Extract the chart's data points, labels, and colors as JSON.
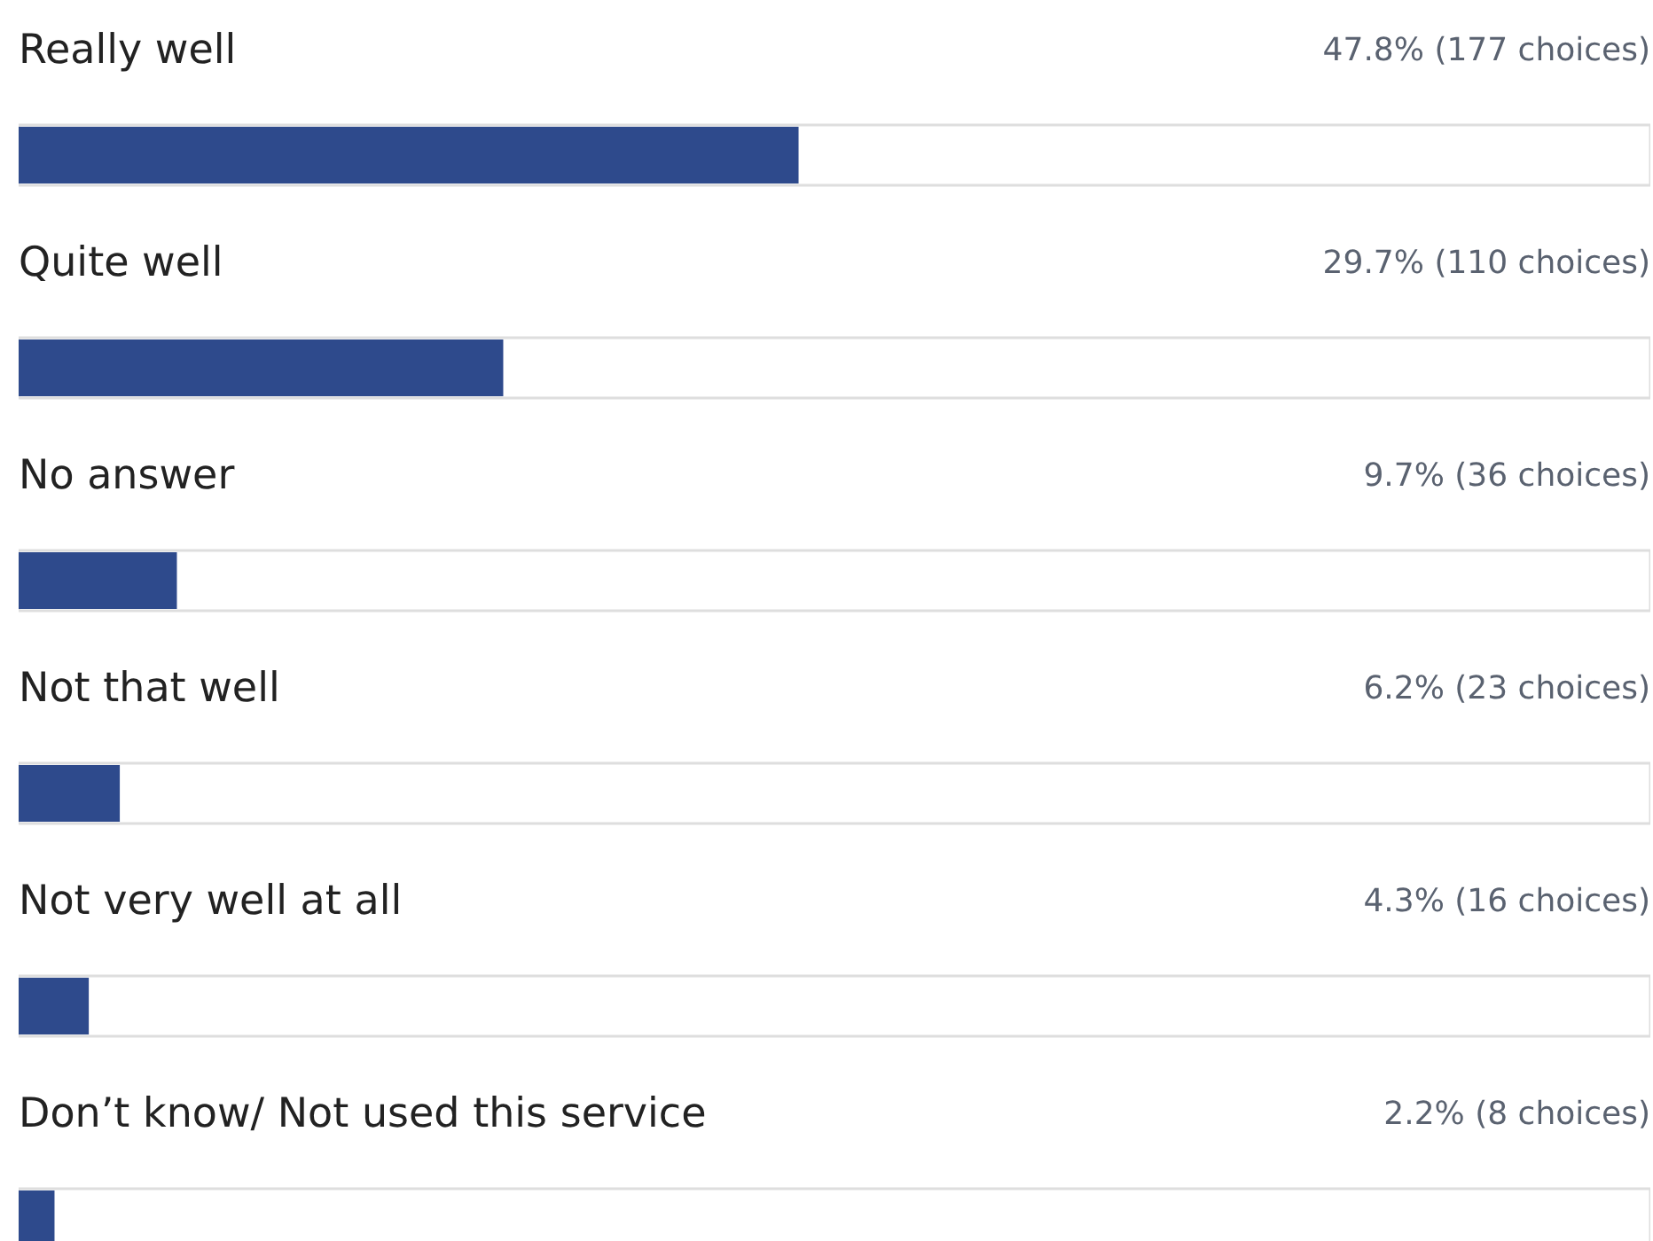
{
  "chart_data": {
    "type": "bar",
    "orientation": "horizontal",
    "categories": [
      "Really well",
      "Quite well",
      "No answer",
      "Not that well",
      "Not very well at all",
      "Don’t know/ Not used this service"
    ],
    "values": [
      47.8,
      29.7,
      9.7,
      6.2,
      4.3,
      2.2
    ],
    "value_labels": [
      "47.8% (177 choices)",
      "29.7% (110 choices)",
      "9.7% (36 choices)",
      "6.2% (23 choices)",
      "4.3% (16 choices)",
      "2.2% (8 choices)"
    ],
    "color": "#2e4a8c",
    "xlim": [
      0,
      100
    ],
    "tick_labels": false,
    "grid": false
  }
}
